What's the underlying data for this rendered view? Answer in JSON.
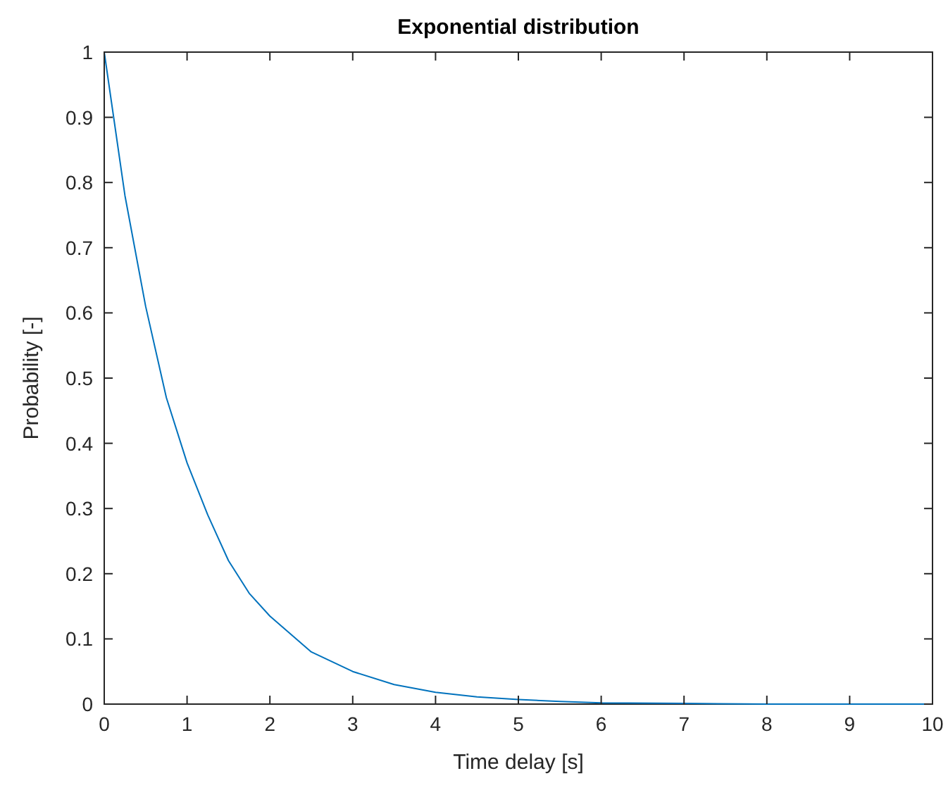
{
  "chart_data": {
    "type": "line",
    "title": "Exponential distribution",
    "xlabel": "Time delay [s]",
    "ylabel": "Probability [-]",
    "x": [
      0,
      0.25,
      0.5,
      0.75,
      1,
      1.25,
      1.5,
      1.75,
      2,
      2.5,
      3,
      3.5,
      4,
      4.5,
      5,
      5.5,
      6,
      7,
      8,
      9,
      10
    ],
    "series": [
      {
        "color": "#0072bd",
        "values": [
          1,
          0.78,
          0.61,
          0.47,
          0.37,
          0.29,
          0.22,
          0.17,
          0.135,
          0.08,
          0.05,
          0.03,
          0.018,
          0.011,
          0.007,
          0.004,
          0.002,
          0.001,
          0,
          0,
          0
        ]
      }
    ],
    "xlim": [
      0,
      10
    ],
    "xticks": [
      0,
      1,
      2,
      3,
      4,
      5,
      6,
      7,
      8,
      9,
      10
    ],
    "ylim": [
      0,
      1
    ],
    "yticks": [
      0,
      0.1,
      0.2,
      0.3,
      0.4,
      0.5,
      0.6,
      0.7,
      0.8,
      0.9,
      1
    ],
    "grid": false
  }
}
